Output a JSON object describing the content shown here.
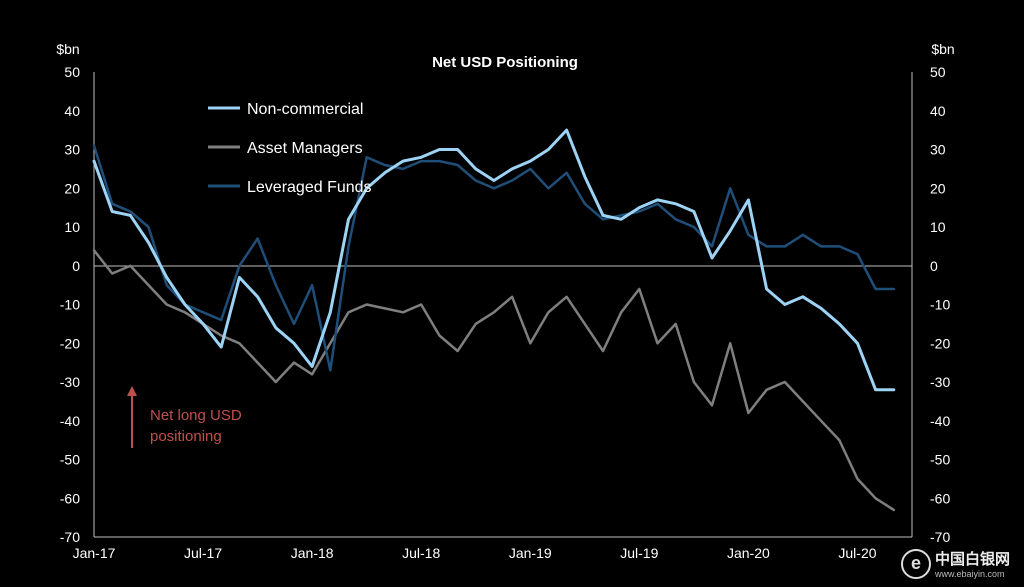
{
  "chart_data": {
    "type": "line",
    "title": "Net USD Positioning",
    "y_unit_left": "$bn",
    "y_unit_right": "$bn",
    "ylim": [
      -70,
      50
    ],
    "yticks": [
      50,
      40,
      30,
      20,
      10,
      0,
      -10,
      -20,
      -30,
      -40,
      -50,
      -60,
      -70
    ],
    "xlim": [
      "2017-01",
      "2020-10"
    ],
    "xticks": [
      "Jan-17",
      "Jul-17",
      "Jan-18",
      "Jul-18",
      "Jan-19",
      "Jul-19",
      "Jan-20",
      "Jul-20"
    ],
    "x": [
      "2017-01",
      "2017-02",
      "2017-03",
      "2017-04",
      "2017-05",
      "2017-06",
      "2017-07",
      "2017-08",
      "2017-09",
      "2017-10",
      "2017-11",
      "2017-12",
      "2018-01",
      "2018-02",
      "2018-03",
      "2018-04",
      "2018-05",
      "2018-06",
      "2018-07",
      "2018-08",
      "2018-09",
      "2018-10",
      "2018-11",
      "2018-12",
      "2019-01",
      "2019-02",
      "2019-03",
      "2019-04",
      "2019-05",
      "2019-06",
      "2019-07",
      "2019-08",
      "2019-09",
      "2019-10",
      "2019-11",
      "2019-12",
      "2020-01",
      "2020-02",
      "2020-03",
      "2020-04",
      "2020-05",
      "2020-06",
      "2020-07",
      "2020-08",
      "2020-09"
    ],
    "legend_position": "top-left",
    "zero_line": true,
    "series": [
      {
        "name": "Non-commercial",
        "color": "#9dd3f5",
        "values": [
          27,
          14,
          13,
          6,
          -3,
          -10,
          -15,
          -21,
          -3,
          -8,
          -16,
          -20,
          -26,
          -12,
          12,
          20,
          24,
          27,
          28,
          30,
          30,
          25,
          22,
          25,
          27,
          30,
          35,
          23,
          13,
          12,
          15,
          17,
          16,
          14,
          2,
          9,
          17,
          -6,
          -10,
          -8,
          -11,
          -15,
          -20,
          -32,
          -32
        ]
      },
      {
        "name": "Asset Managers",
        "color": "#7f7f7f",
        "values": [
          4,
          -2,
          0,
          -5,
          -10,
          -12,
          -15,
          -18,
          -20,
          -25,
          -30,
          -25,
          -28,
          -20,
          -12,
          -10,
          -11,
          -12,
          -10,
          -18,
          -22,
          -15,
          -12,
          -8,
          -20,
          -12,
          -8,
          -15,
          -22,
          -12,
          -6,
          -20,
          -15,
          -30,
          -36,
          -20,
          -38,
          -32,
          -30,
          -35,
          -40,
          -45,
          -55,
          -60,
          -63
        ]
      },
      {
        "name": "Leveraged Funds",
        "color": "#1f4e79",
        "values": [
          31,
          16,
          14,
          10,
          -5,
          -10,
          -12,
          -14,
          0,
          7,
          -5,
          -15,
          -5,
          -27,
          5,
          28,
          26,
          25,
          27,
          27,
          26,
          22,
          20,
          22,
          25,
          20,
          24,
          16,
          12,
          13,
          14,
          16,
          12,
          10,
          5,
          20,
          8,
          5,
          5,
          8,
          5,
          5,
          3,
          -6,
          -6
        ]
      }
    ],
    "annotation": {
      "text_line1": "Net long USD",
      "text_line2": "positioning",
      "color": "#c0504d"
    }
  },
  "watermark": {
    "logo": "e",
    "cn": "中国白银网",
    "url": "www.ebaiyin.com"
  }
}
